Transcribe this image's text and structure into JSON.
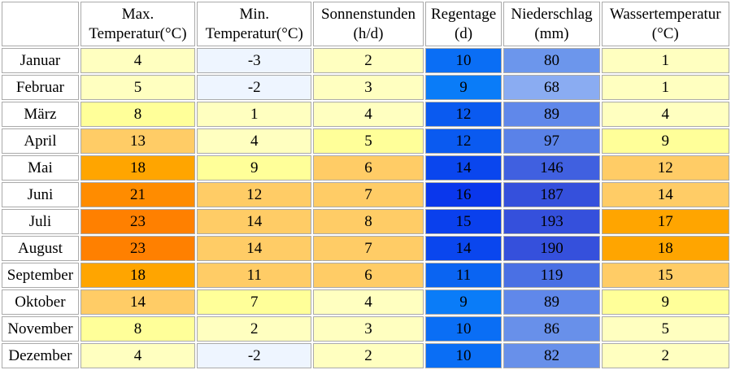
{
  "headers": {
    "max_temp": [
      "Max.",
      "Temperatur(°C)"
    ],
    "min_temp": [
      "Min.",
      "Temperatur(°C)"
    ],
    "sun": [
      "Sonnenstunden",
      "(h/d)"
    ],
    "rain_days": [
      "Regentage",
      "(d)"
    ],
    "precip": [
      "Niederschlag",
      "(mm)"
    ],
    "water_temp": [
      "Wassertemperatur",
      "(°C)"
    ]
  },
  "rows": [
    {
      "month": "Januar",
      "max": "4",
      "min": "-3",
      "sun": "2",
      "rain": "10",
      "precip": "80",
      "water": "1"
    },
    {
      "month": "Februar",
      "max": "5",
      "min": "-2",
      "sun": "3",
      "rain": "9",
      "precip": "68",
      "water": "1"
    },
    {
      "month": "März",
      "max": "8",
      "min": "1",
      "sun": "4",
      "rain": "12",
      "precip": "89",
      "water": "4"
    },
    {
      "month": "April",
      "max": "13",
      "min": "4",
      "sun": "5",
      "rain": "12",
      "precip": "97",
      "water": "9"
    },
    {
      "month": "Mai",
      "max": "18",
      "min": "9",
      "sun": "6",
      "rain": "14",
      "precip": "146",
      "water": "12"
    },
    {
      "month": "Juni",
      "max": "21",
      "min": "12",
      "sun": "7",
      "rain": "16",
      "precip": "187",
      "water": "14"
    },
    {
      "month": "Juli",
      "max": "23",
      "min": "14",
      "sun": "8",
      "rain": "15",
      "precip": "193",
      "water": "17"
    },
    {
      "month": "August",
      "max": "23",
      "min": "14",
      "sun": "7",
      "rain": "14",
      "precip": "190",
      "water": "18"
    },
    {
      "month": "September",
      "max": "18",
      "min": "11",
      "sun": "6",
      "rain": "11",
      "precip": "119",
      "water": "15"
    },
    {
      "month": "Oktober",
      "max": "14",
      "min": "7",
      "sun": "4",
      "rain": "9",
      "precip": "89",
      "water": "9"
    },
    {
      "month": "November",
      "max": "8",
      "min": "2",
      "sun": "3",
      "rain": "10",
      "precip": "86",
      "water": "5"
    },
    {
      "month": "Dezember",
      "max": "4",
      "min": "-2",
      "sun": "2",
      "rain": "10",
      "precip": "82",
      "water": "2"
    }
  ],
  "cell_colors": {
    "max": [
      "#ffffc0",
      "#ffffc0",
      "#ffff99",
      "#ffcc66",
      "#ffa500",
      "#ff8c00",
      "#ff8000",
      "#ff8000",
      "#ffa500",
      "#ffcc66",
      "#ffff99",
      "#ffffc0"
    ],
    "min": [
      "#eef5ff",
      "#eef5ff",
      "#ffffc0",
      "#ffffc0",
      "#ffff99",
      "#ffcc66",
      "#ffcc66",
      "#ffcc66",
      "#ffcc66",
      "#ffff99",
      "#ffffc0",
      "#eef5ff"
    ],
    "sun": [
      "#ffffc0",
      "#ffffc0",
      "#ffffc0",
      "#ffff99",
      "#ffcc66",
      "#ffcc66",
      "#ffcc66",
      "#ffcc66",
      "#ffcc66",
      "#ffffc0",
      "#ffffc0",
      "#ffffc0"
    ],
    "rain": [
      "#0a6ef5",
      "#0a7cf8",
      "#0a5af0",
      "#0a5af0",
      "#0a46ee",
      "#0a37ec",
      "#0a40ed",
      "#0a46ee",
      "#0a64f2",
      "#0a7cf8",
      "#0a6ef5",
      "#0a6ef5"
    ],
    "precip": [
      "#6c96ec",
      "#8aacf2",
      "#6088ea",
      "#5a82e8",
      "#4060e0",
      "#3550dc",
      "#3550dc",
      "#3550dc",
      "#4a70e4",
      "#6088ea",
      "#6890ea",
      "#6890ea"
    ],
    "water": [
      "#ffffc0",
      "#ffffc0",
      "#ffffc0",
      "#ffff99",
      "#ffcc66",
      "#ffcc66",
      "#ffa500",
      "#ffa500",
      "#ffcc66",
      "#ffff99",
      "#ffffc0",
      "#ffffc0"
    ]
  }
}
